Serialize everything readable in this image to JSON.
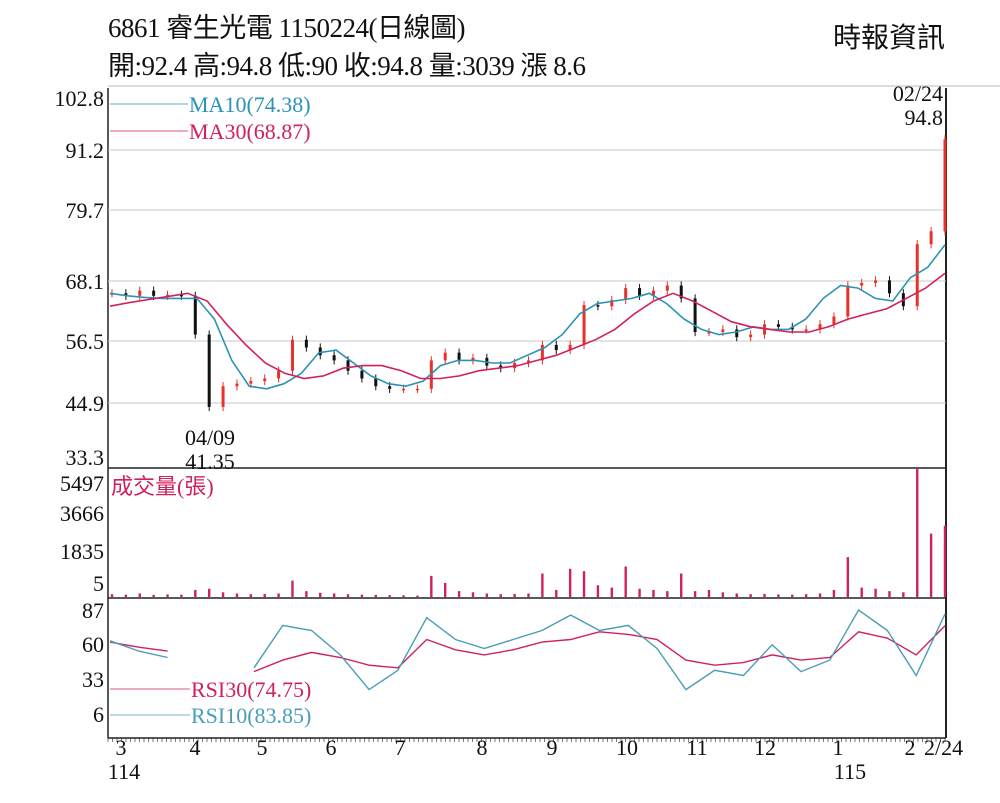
{
  "header": {
    "title": "6861  睿生光電 1150224(日線圖)",
    "quote": "開:92.4 高:94.8 低:90 收:94.8 量:3039 漲 8.6",
    "source": "時報資訊"
  },
  "chart_data": [
    {
      "type": "candlestick",
      "panel": "price",
      "ylim": [
        33.3,
        102.8
      ],
      "yticks": [
        "102.8",
        "91.2",
        "79.7",
        "68.1",
        "56.5",
        "44.9",
        "33.3"
      ],
      "grid": true,
      "close": [
        65,
        64.5,
        65.5,
        64.5,
        64.7,
        64.5,
        57,
        43,
        47,
        47.5,
        48,
        48.5,
        50,
        56,
        54.5,
        53,
        52,
        50,
        48.5,
        47,
        46.5,
        46.5,
        46.5,
        52,
        53.5,
        52,
        52.5,
        51,
        50.5,
        51.5,
        52,
        55,
        54,
        55,
        62.7,
        62.5,
        63.7,
        66,
        64.5,
        65.5,
        66.5,
        64,
        57.5,
        57.5,
        58,
        56.5,
        57,
        59,
        58.5,
        58,
        58,
        59,
        60.5,
        66.5,
        67,
        67.5,
        65,
        62.5,
        74.5,
        77,
        94.8
      ],
      "series": [
        {
          "name": "MA10",
          "label": "MA10(74.38)",
          "color": "#2a93b5",
          "values": [
            65,
            64.5,
            64.2,
            64,
            64,
            64,
            60,
            52,
            47,
            46.5,
            47.5,
            49.5,
            53.5,
            54,
            51.5,
            49,
            47.5,
            47,
            48,
            51,
            52,
            52,
            51.5,
            51.5,
            53,
            54.5,
            57,
            61,
            63,
            63.5,
            64,
            65,
            63,
            60,
            58,
            57,
            57.5,
            58.5,
            58,
            58,
            60,
            64,
            66.5,
            66,
            64,
            63.5,
            68,
            70,
            74.38
          ]
        },
        {
          "name": "MA30",
          "label": "MA30(68.87)",
          "color": "#d0215e",
          "values": [
            62.5,
            63.2,
            63.8,
            64.4,
            65,
            63.5,
            59,
            55,
            51.5,
            49.5,
            48.5,
            49,
            50.5,
            51,
            51,
            50,
            48.5,
            48.5,
            49,
            50,
            50.5,
            51,
            52,
            53,
            54.5,
            56,
            58,
            61,
            63.5,
            65,
            63.5,
            61.5,
            59.5,
            58.5,
            58,
            57.5,
            57.5,
            58.5,
            60,
            61,
            62,
            64,
            66,
            68.87
          ]
        }
      ],
      "annotations": [
        {
          "date": "04/09",
          "value": "41.35"
        },
        {
          "date": "02/24",
          "value": "94.8"
        }
      ]
    },
    {
      "type": "bar",
      "panel": "volume",
      "title": "成交量(張)",
      "yticks": [
        "5497",
        "3666",
        "1835",
        "5"
      ],
      "ylim": [
        5,
        5497
      ],
      "values": [
        120,
        100,
        150,
        90,
        110,
        100,
        300,
        350,
        200,
        150,
        120,
        130,
        150,
        700,
        250,
        180,
        150,
        120,
        100,
        90,
        80,
        70,
        60,
        900,
        600,
        250,
        200,
        150,
        120,
        130,
        150,
        1000,
        300,
        1200,
        1100,
        500,
        400,
        1300,
        350,
        300,
        250,
        1000,
        250,
        300,
        200,
        150,
        120,
        130,
        110,
        100,
        120,
        150,
        300,
        1700,
        400,
        350,
        250,
        200,
        5497,
        2700,
        3039
      ]
    },
    {
      "type": "line",
      "panel": "rsi",
      "yticks": [
        "87",
        "60",
        "33",
        "6"
      ],
      "ylim": [
        6,
        87
      ],
      "series": [
        {
          "name": "RSI30",
          "label": "RSI30(74.75)",
          "color": "#d0215e",
          "values": [
            62,
            58,
            55,
            null,
            null,
            39,
            48,
            54,
            50,
            44,
            42,
            64,
            56,
            52,
            56,
            62,
            64,
            70,
            68,
            64,
            48,
            44,
            46,
            52,
            48,
            50,
            70,
            65,
            52,
            74.75
          ]
        },
        {
          "name": "RSI10",
          "label": "RSI10(83.85)",
          "color": "#4a9db8",
          "values": [
            63,
            55,
            50,
            null,
            null,
            42,
            75,
            71,
            52,
            25,
            40,
            81,
            64,
            57,
            64,
            71,
            83,
            71,
            75,
            57,
            25,
            40,
            36,
            60,
            39,
            48,
            87,
            71,
            36,
            83.85
          ]
        }
      ]
    }
  ],
  "x_axis": {
    "months": [
      "3",
      "4",
      "5",
      "6",
      "7",
      "8",
      "9",
      "10",
      "11",
      "12",
      "1",
      "2",
      "2/24"
    ],
    "years": [
      "114",
      "115"
    ]
  },
  "colors": {
    "up": "#e8312a",
    "down": "#111111",
    "volume": "#d0215e",
    "grid": "#c8c8c8"
  }
}
